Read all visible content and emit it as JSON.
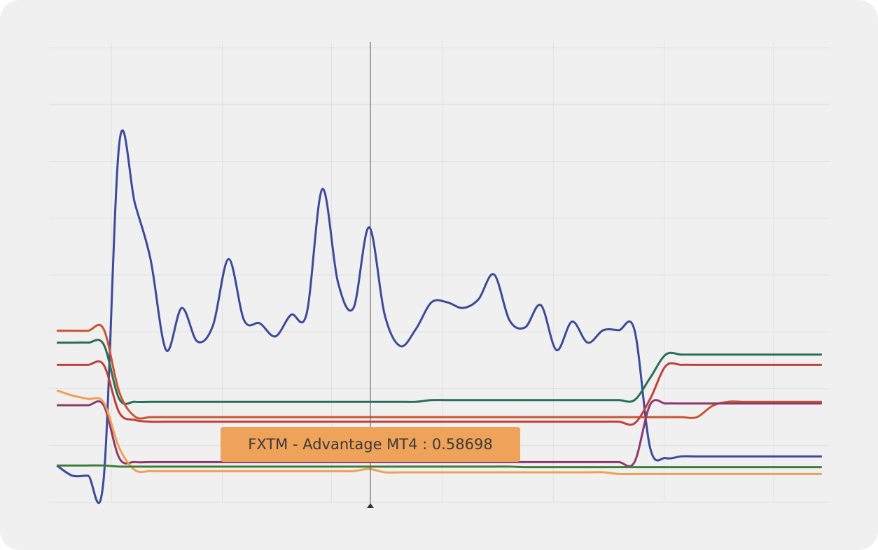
{
  "chart_data": {
    "type": "line",
    "tooltip": "FXTM - Advantage MT4 : 0.58698",
    "x": [
      0,
      1,
      2,
      3,
      4,
      5,
      6,
      7,
      8,
      9,
      10,
      11,
      12,
      13,
      14,
      15,
      16,
      17,
      18,
      19,
      20,
      21,
      22,
      23,
      24,
      25,
      26,
      27,
      28,
      29,
      30,
      31,
      32,
      33,
      34,
      35,
      36,
      37,
      38,
      39,
      40,
      41,
      42,
      43,
      44,
      45,
      46,
      47,
      48,
      49
    ],
    "xlim": [
      -0.5,
      49.5
    ],
    "xticks": [
      3.5,
      10.6,
      17.6,
      24.7,
      31.8,
      38.9,
      45.9
    ],
    "ylim": [
      0,
      8
    ],
    "yticks": [
      0,
      1,
      2,
      3,
      4,
      5,
      6,
      7,
      8
    ],
    "grid": true,
    "series": [
      {
        "color": "#3b4a9a",
        "values": [
          0.65,
          0.47,
          0.47,
          0.41,
          6.31,
          5.26,
          4.28,
          2.68,
          3.42,
          2.83,
          3.11,
          4.28,
          3.2,
          3.15,
          2.92,
          3.3,
          3.32,
          5.51,
          3.88,
          3.42,
          4.84,
          3.3,
          2.75,
          3.05,
          3.52,
          3.52,
          3.42,
          3.57,
          4.01,
          3.2,
          3.08,
          3.47,
          2.68,
          3.18,
          2.81,
          3.03,
          3.03,
          3.03,
          0.96,
          0.78,
          0.81,
          0.81,
          0.81,
          0.81,
          0.81,
          0.81,
          0.81,
          0.81,
          0.81,
          0.81
        ]
      },
      {
        "color": "#2a6e55",
        "values": [
          2.81,
          2.81,
          2.81,
          2.78,
          1.82,
          1.77,
          1.77,
          1.77,
          1.77,
          1.77,
          1.77,
          1.77,
          1.77,
          1.77,
          1.77,
          1.77,
          1.77,
          1.77,
          1.77,
          1.77,
          1.77,
          1.77,
          1.77,
          1.77,
          1.8,
          1.8,
          1.8,
          1.8,
          1.8,
          1.8,
          1.8,
          1.8,
          1.8,
          1.8,
          1.8,
          1.8,
          1.8,
          1.8,
          2.19,
          2.6,
          2.6,
          2.6,
          2.6,
          2.6,
          2.6,
          2.6,
          2.6,
          2.6,
          2.6,
          2.6
        ]
      },
      {
        "color": "#c9562e",
        "values": [
          3.02,
          3.02,
          3.02,
          3.05,
          1.94,
          1.51,
          1.5,
          1.5,
          1.5,
          1.5,
          1.5,
          1.5,
          1.5,
          1.5,
          1.5,
          1.5,
          1.5,
          1.5,
          1.5,
          1.5,
          1.5,
          1.5,
          1.5,
          1.5,
          1.5,
          1.5,
          1.5,
          1.5,
          1.5,
          1.5,
          1.5,
          1.5,
          1.5,
          1.5,
          1.5,
          1.5,
          1.5,
          1.5,
          1.5,
          1.5,
          1.5,
          1.5,
          1.7,
          1.77,
          1.77,
          1.77,
          1.77,
          1.77,
          1.77,
          1.77
        ]
      },
      {
        "color": "#c0403a",
        "values": [
          2.42,
          2.42,
          2.42,
          2.42,
          1.58,
          1.45,
          1.42,
          1.42,
          1.42,
          1.42,
          1.42,
          1.42,
          1.42,
          1.42,
          1.42,
          1.42,
          1.42,
          1.42,
          1.42,
          1.42,
          1.42,
          1.42,
          1.42,
          1.42,
          1.42,
          1.42,
          1.42,
          1.42,
          1.42,
          1.42,
          1.42,
          1.42,
          1.42,
          1.42,
          1.42,
          1.42,
          1.42,
          1.39,
          1.82,
          2.4,
          2.42,
          2.42,
          2.42,
          2.42,
          2.42,
          2.42,
          2.42,
          2.42,
          2.42,
          2.42
        ]
      },
      {
        "color": "#8c3a6e",
        "values": [
          1.71,
          1.71,
          1.71,
          1.71,
          0.78,
          0.71,
          0.71,
          0.71,
          0.71,
          0.71,
          0.71,
          0.71,
          0.71,
          0.71,
          0.71,
          0.71,
          0.71,
          0.71,
          0.71,
          0.71,
          0.71,
          0.71,
          0.71,
          0.71,
          0.71,
          0.71,
          0.71,
          0.71,
          0.71,
          0.71,
          0.71,
          0.71,
          0.71,
          0.71,
          0.71,
          0.71,
          0.71,
          0.71,
          1.72,
          1.74,
          1.74,
          1.74,
          1.74,
          1.74,
          1.74,
          1.74,
          1.74,
          1.74,
          1.74,
          1.74
        ]
      },
      {
        "color": "#f0a050",
        "values": [
          1.97,
          1.88,
          1.82,
          1.76,
          0.96,
          0.57,
          0.55,
          0.55,
          0.55,
          0.55,
          0.55,
          0.55,
          0.55,
          0.55,
          0.55,
          0.55,
          0.55,
          0.55,
          0.55,
          0.55,
          0.58698,
          0.53,
          0.53,
          0.53,
          0.53,
          0.53,
          0.53,
          0.53,
          0.53,
          0.53,
          0.53,
          0.53,
          0.53,
          0.53,
          0.53,
          0.53,
          0.5,
          0.5,
          0.5,
          0.5,
          0.5,
          0.5,
          0.5,
          0.5,
          0.5,
          0.5,
          0.5,
          0.5,
          0.5,
          0.5
        ]
      },
      {
        "color": "#3e7d3e",
        "values": [
          0.65,
          0.65,
          0.65,
          0.65,
          0.63,
          0.63,
          0.63,
          0.63,
          0.63,
          0.63,
          0.63,
          0.63,
          0.63,
          0.63,
          0.63,
          0.63,
          0.63,
          0.63,
          0.63,
          0.63,
          0.63,
          0.63,
          0.63,
          0.63,
          0.63,
          0.63,
          0.63,
          0.63,
          0.63,
          0.63,
          0.62,
          0.62,
          0.62,
          0.62,
          0.62,
          0.62,
          0.62,
          0.62,
          0.62,
          0.62,
          0.62,
          0.62,
          0.62,
          0.62,
          0.62,
          0.62,
          0.62,
          0.62,
          0.62,
          0.62
        ]
      }
    ]
  }
}
